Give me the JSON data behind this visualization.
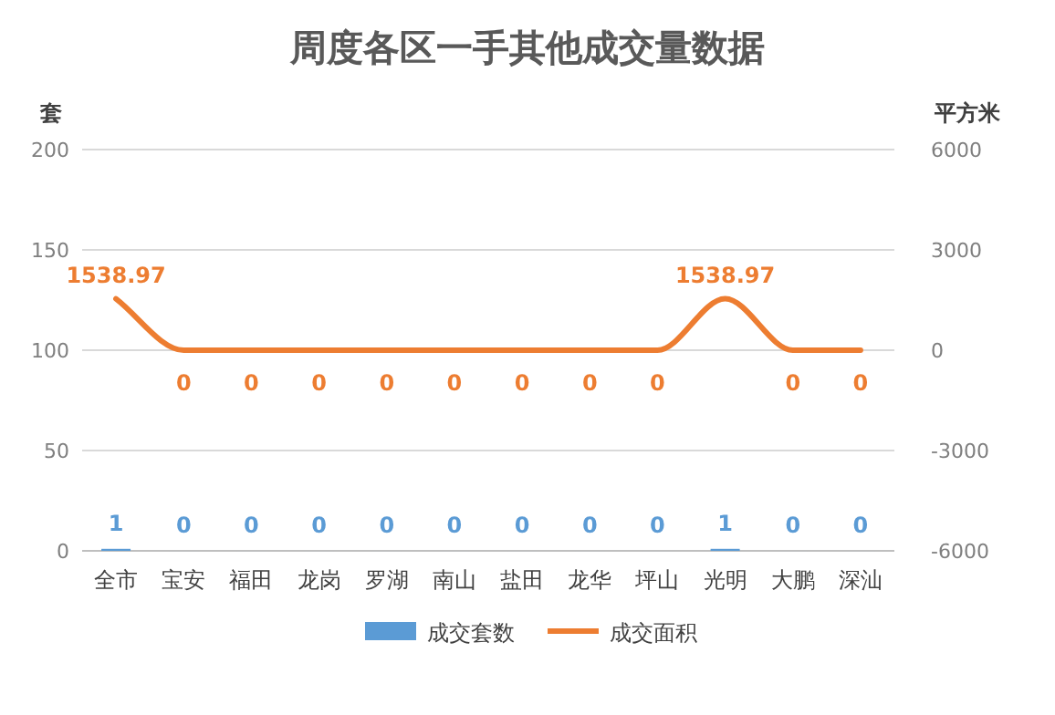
{
  "chart_data": {
    "type": "bar",
    "title": "周度各区一手其他成交量数据",
    "ylabel": "套",
    "y2label": "平方米",
    "categories": [
      "全市",
      "宝安",
      "福田",
      "龙岗",
      "罗湖",
      "南山",
      "盐田",
      "龙华",
      "坪山",
      "光明",
      "大鹏",
      "深汕"
    ],
    "series": [
      {
        "name": "成交套数",
        "color": "#5b9bd5",
        "values": [
          1,
          0,
          0,
          0,
          0,
          0,
          0,
          0,
          0,
          1,
          0,
          0
        ]
      },
      {
        "name": "成交面积",
        "type": "line",
        "axis": "y2",
        "color": "#ed7d31",
        "values": [
          1538.97,
          0,
          0,
          0,
          0,
          0,
          0,
          0,
          0,
          1538.97,
          0,
          0
        ]
      }
    ],
    "ylim": [
      0,
      200
    ],
    "yticks": [
      0,
      50,
      100,
      150,
      200
    ],
    "y2lim": [
      -6000,
      6000
    ],
    "y2ticks": [
      -6000,
      -3000,
      0,
      3000,
      6000
    ],
    "grid": "y",
    "legend": "bottom",
    "data_labels": true
  }
}
